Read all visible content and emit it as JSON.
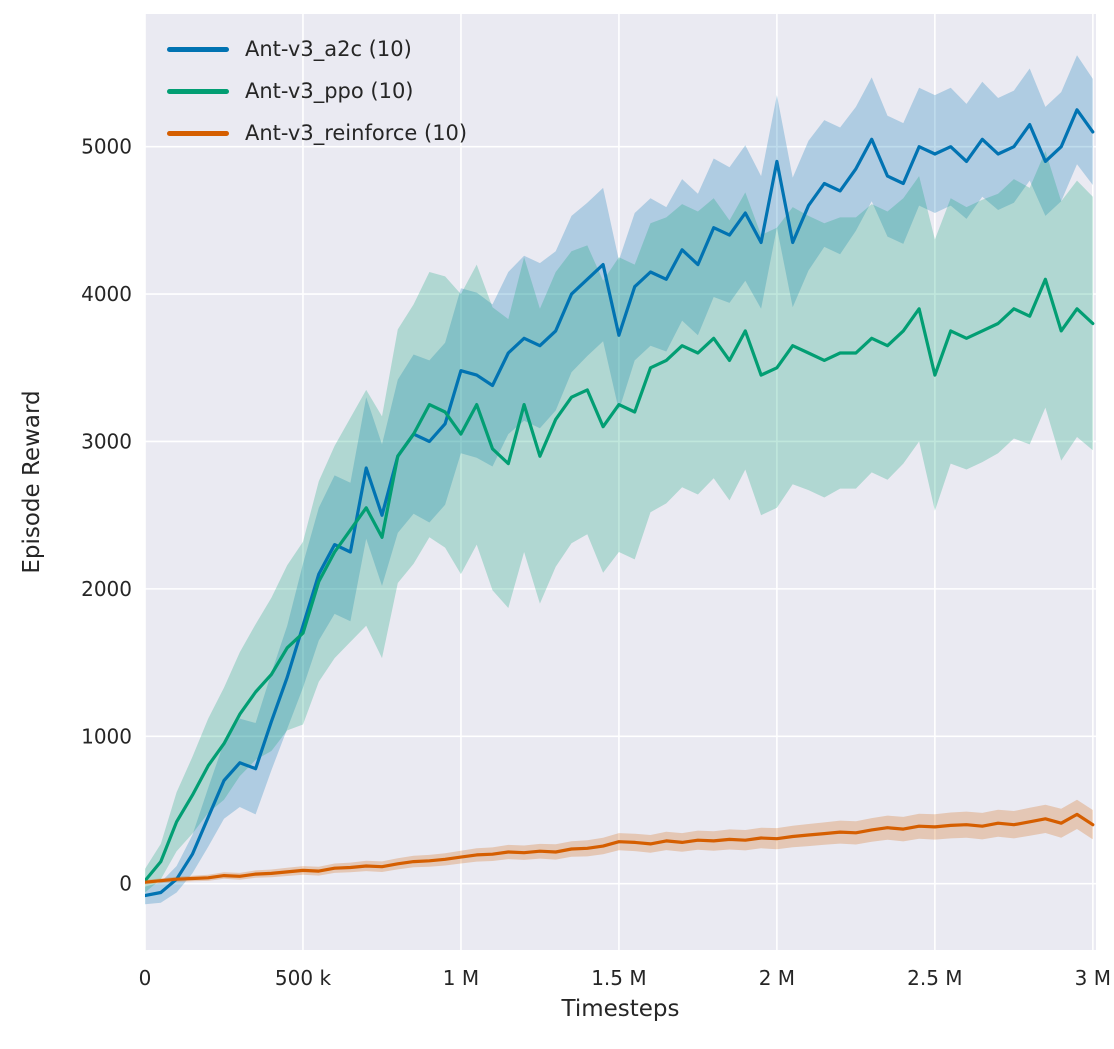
{
  "figure": {
    "background": "#ffffff",
    "axes_background": "#eaeaf2",
    "grid_color": "#ffffff",
    "text_color": "#262626"
  },
  "chart_data": {
    "type": "line",
    "title": "",
    "xlabel": "Timesteps",
    "ylabel": "Episode Reward",
    "grid": true,
    "legend_position": "upper-left",
    "xlim": [
      0,
      3010000
    ],
    "ylim": [
      -450,
      5900
    ],
    "x_ticks": {
      "values": [
        0,
        500000,
        1000000,
        1500000,
        2000000,
        2500000,
        3000000
      ],
      "labels": [
        "0",
        "500 k",
        "1 M",
        "1.5 M",
        "2 M",
        "2.5 M",
        "3 M"
      ]
    },
    "y_ticks": {
      "values": [
        0,
        1000,
        2000,
        3000,
        4000,
        5000
      ],
      "labels": [
        "0",
        "1000",
        "2000",
        "3000",
        "4000",
        "5000"
      ]
    },
    "x": [
      0,
      50000,
      100000,
      150000,
      200000,
      250000,
      300000,
      350000,
      400000,
      450000,
      500000,
      550000,
      600000,
      650000,
      700000,
      750000,
      800000,
      850000,
      900000,
      950000,
      1000000,
      1050000,
      1100000,
      1150000,
      1200000,
      1250000,
      1300000,
      1350000,
      1400000,
      1450000,
      1500000,
      1550000,
      1600000,
      1650000,
      1700000,
      1750000,
      1800000,
      1850000,
      1900000,
      1950000,
      2000000,
      2050000,
      2100000,
      2150000,
      2200000,
      2250000,
      2300000,
      2350000,
      2400000,
      2450000,
      2500000,
      2550000,
      2600000,
      2650000,
      2700000,
      2750000,
      2800000,
      2850000,
      2900000,
      2950000,
      3000000
    ],
    "series": [
      {
        "name": "Ant-v3_a2c (10)",
        "color": "#0173b2",
        "band_alpha": 0.25,
        "mean": [
          -80,
          -60,
          30,
          200,
          450,
          700,
          820,
          780,
          1100,
          1400,
          1750,
          2100,
          2300,
          2250,
          2820,
          2500,
          2900,
          3050,
          3000,
          3120,
          3480,
          3450,
          3380,
          3600,
          3700,
          3650,
          3750,
          4000,
          4100,
          4200,
          3720,
          4050,
          4150,
          4100,
          4300,
          4200,
          4450,
          4400,
          4550,
          4350,
          4900,
          4350,
          4600,
          4750,
          4700,
          4850,
          5050,
          4800,
          4750,
          5000,
          4950,
          5000,
          4900,
          5050,
          4950,
          5000,
          5150,
          4900,
          5000,
          5250,
          5100
        ],
        "band_low": [
          -140,
          -130,
          -60,
          70,
          250,
          440,
          520,
          470,
          770,
          1050,
          1330,
          1650,
          1830,
          1780,
          2340,
          2020,
          2380,
          2510,
          2450,
          2570,
          2920,
          2890,
          2830,
          3050,
          3140,
          3090,
          3210,
          3470,
          3580,
          3680,
          3210,
          3550,
          3650,
          3610,
          3820,
          3720,
          3980,
          3940,
          4090,
          3900,
          4450,
          3910,
          4160,
          4320,
          4270,
          4430,
          4630,
          4390,
          4340,
          4600,
          4550,
          4600,
          4510,
          4660,
          4570,
          4620,
          4770,
          4530,
          4630,
          4880,
          4740
        ],
        "band_high": [
          -20,
          10,
          120,
          330,
          650,
          960,
          1120,
          1090,
          1430,
          1750,
          2170,
          2550,
          2770,
          2720,
          3300,
          2980,
          3420,
          3590,
          3550,
          3670,
          4040,
          4010,
          3930,
          4150,
          4260,
          4210,
          4290,
          4530,
          4620,
          4720,
          4230,
          4550,
          4650,
          4590,
          4780,
          4680,
          4920,
          4860,
          5010,
          4800,
          5350,
          4790,
          5040,
          5180,
          5130,
          5270,
          5470,
          5210,
          5160,
          5400,
          5350,
          5400,
          5290,
          5440,
          5330,
          5380,
          5530,
          5270,
          5370,
          5620,
          5460
        ]
      },
      {
        "name": "Ant-v3_ppo (10)",
        "color": "#029e73",
        "band_alpha": 0.25,
        "mean": [
          20,
          150,
          420,
          600,
          800,
          950,
          1150,
          1300,
          1420,
          1600,
          1700,
          2050,
          2250,
          2400,
          2550,
          2350,
          2900,
          3050,
          3250,
          3200,
          3050,
          3250,
          2950,
          2850,
          3250,
          2900,
          3150,
          3300,
          3350,
          3100,
          3250,
          3200,
          3500,
          3550,
          3650,
          3600,
          3700,
          3550,
          3750,
          3450,
          3500,
          3650,
          3600,
          3550,
          3600,
          3600,
          3700,
          3650,
          3750,
          3900,
          3450,
          3750,
          3700,
          3750,
          3800,
          3900,
          3850,
          4100,
          3750,
          3900,
          3800
        ],
        "band_low": [
          -60,
          30,
          220,
          340,
          480,
          570,
          730,
          840,
          900,
          1040,
          1080,
          1370,
          1530,
          1640,
          1750,
          1530,
          2040,
          2170,
          2350,
          2280,
          2100,
          2300,
          1990,
          1870,
          2250,
          1900,
          2150,
          2310,
          2370,
          2110,
          2250,
          2200,
          2520,
          2580,
          2690,
          2640,
          2750,
          2600,
          2810,
          2500,
          2550,
          2710,
          2670,
          2620,
          2680,
          2680,
          2790,
          2740,
          2850,
          3000,
          2530,
          2850,
          2810,
          2860,
          2920,
          3020,
          2980,
          3230,
          2870,
          3030,
          2940
        ],
        "band_high": [
          100,
          270,
          620,
          860,
          1120,
          1330,
          1570,
          1760,
          1940,
          2160,
          2320,
          2730,
          2970,
          3160,
          3350,
          3170,
          3760,
          3930,
          4150,
          4120,
          4000,
          4200,
          3910,
          3830,
          4250,
          3900,
          4150,
          4290,
          4330,
          4090,
          4250,
          4200,
          4480,
          4520,
          4610,
          4560,
          4650,
          4500,
          4690,
          4400,
          4450,
          4590,
          4530,
          4480,
          4520,
          4520,
          4610,
          4560,
          4650,
          4800,
          4370,
          4650,
          4590,
          4640,
          4680,
          4780,
          4720,
          4970,
          4630,
          4770,
          4660
        ]
      },
      {
        "name": "Ant-v3_reinforce (10)",
        "color": "#d55e00",
        "band_alpha": 0.25,
        "mean": [
          10,
          20,
          30,
          35,
          40,
          55,
          50,
          65,
          70,
          80,
          90,
          85,
          105,
          110,
          120,
          115,
          135,
          150,
          155,
          165,
          180,
          195,
          200,
          215,
          210,
          220,
          215,
          235,
          240,
          255,
          285,
          280,
          270,
          290,
          280,
          295,
          290,
          300,
          295,
          310,
          305,
          320,
          330,
          340,
          350,
          345,
          365,
          380,
          370,
          390,
          385,
          395,
          400,
          390,
          410,
          400,
          420,
          440,
          410,
          470,
          400
        ],
        "band_low": [
          -5,
          4,
          12,
          16,
          19,
          33,
          27,
          40,
          44,
          52,
          61,
          55,
          73,
          77,
          85,
          79,
          97,
          111,
          115,
          123,
          137,
          150,
          154,
          167,
          161,
          170,
          163,
          182,
          185,
          199,
          227,
          221,
          210,
          228,
          217,
          230,
          224,
          232,
          226,
          240,
          233,
          247,
          255,
          264,
          272,
          266,
          285,
          298,
          287,
          305,
          299,
          307,
          311,
          300,
          318,
          307,
          325,
          344,
          312,
          371,
          300
        ],
        "band_high": [
          25,
          36,
          48,
          54,
          61,
          77,
          73,
          90,
          96,
          108,
          119,
          115,
          137,
          143,
          155,
          151,
          173,
          189,
          195,
          207,
          223,
          240,
          246,
          263,
          259,
          270,
          267,
          288,
          295,
          311,
          343,
          339,
          330,
          352,
          343,
          360,
          356,
          368,
          364,
          380,
          377,
          393,
          405,
          416,
          428,
          424,
          445,
          462,
          453,
          475,
          471,
          483,
          489,
          480,
          502,
          493,
          515,
          536,
          508,
          569,
          500
        ]
      }
    ]
  }
}
